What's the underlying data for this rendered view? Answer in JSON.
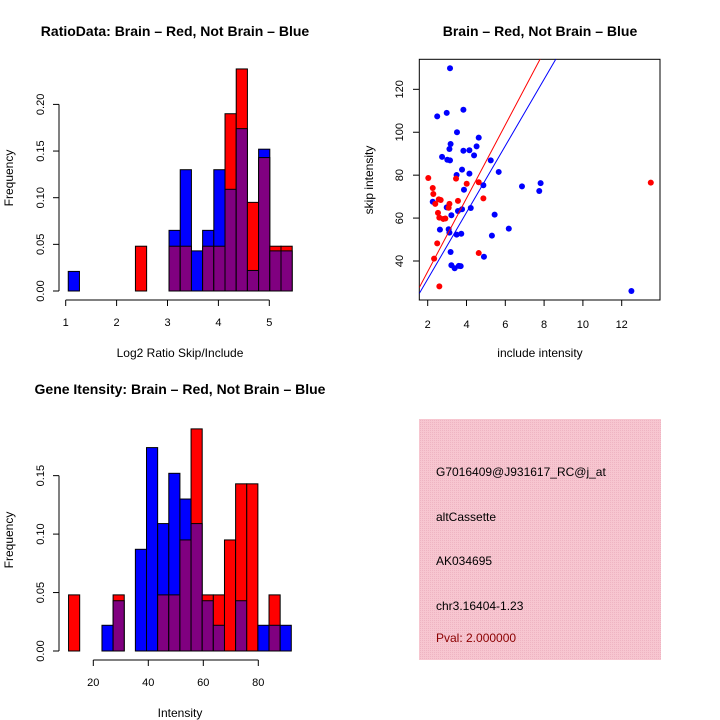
{
  "colors": {
    "brain": "#ff0000",
    "not_brain": "#0000ff",
    "overlap": "#800080",
    "panel_bg": "#f4c2cc",
    "pval": "#8b0000"
  },
  "chart_data": [
    {
      "id": "ratio_hist",
      "type": "bar",
      "title": "RatioData: Brain – Red, Not Brain – Blue",
      "xlabel": "Log2 Ratio Skip/Include",
      "ylabel": "Frequency",
      "break_start": 1.05,
      "bin_width": 0.22,
      "xticks": [
        1,
        2,
        3,
        4,
        5
      ],
      "yticks": [
        "0.00",
        "0.05",
        "0.10",
        "0.15",
        "0.20"
      ],
      "series": [
        {
          "name": "Brain",
          "color": "red",
          "values": [
            0,
            0,
            0,
            0,
            0,
            0,
            0.048,
            0,
            0,
            0.048,
            0.048,
            0,
            0.048,
            0.048,
            0.19,
            0.238,
            0.095,
            0.143,
            0.048,
            0.048
          ]
        },
        {
          "name": "Not Brain",
          "color": "blue",
          "values": [
            0.021,
            0,
            0,
            0,
            0,
            0,
            0,
            0,
            0,
            0.065,
            0.13,
            0.043,
            0.065,
            0.13,
            0.109,
            0.174,
            0.022,
            0.152,
            0.043,
            0.043
          ]
        }
      ]
    },
    {
      "id": "scatter",
      "type": "scatter",
      "title": "Brain – Red, Not Brain – Blue",
      "xlabel": "include intensity",
      "ylabel": "skip intensity",
      "xlim": [
        1.57,
        13.97
      ],
      "ylim": [
        21.8,
        134
      ],
      "xticks": [
        2,
        4,
        6,
        8,
        10,
        12
      ],
      "yticks": [
        40,
        60,
        80,
        100,
        120
      ],
      "series": [
        {
          "name": "Not Brain",
          "color": "blue",
          "points": [
            [
              3.15,
              129.8
            ],
            [
              2.49,
              107.4
            ],
            [
              2.98,
              109
            ],
            [
              3.84,
              110.5
            ],
            [
              3.51,
              100
            ],
            [
              4.63,
              97.5
            ],
            [
              3.18,
              94.5
            ],
            [
              3.12,
              92.2
            ],
            [
              3.84,
              91.4
            ],
            [
              4.15,
              91.6
            ],
            [
              4.52,
              93.4
            ],
            [
              4.39,
              89.2
            ],
            [
              2.74,
              88.5
            ],
            [
              3.01,
              87.2
            ],
            [
              3.15,
              86.9
            ],
            [
              5.25,
              86.9
            ],
            [
              3.77,
              82.6
            ],
            [
              5.66,
              81.5
            ],
            [
              3.49,
              80.1
            ],
            [
              4.15,
              80.7
            ],
            [
              4.87,
              75.3
            ],
            [
              3.87,
              73.2
            ],
            [
              6.86,
              74.8
            ],
            [
              7.82,
              76.3
            ],
            [
              7.75,
              72.6
            ],
            [
              2.26,
              67.6
            ],
            [
              2.98,
              65
            ],
            [
              3.22,
              61.3
            ],
            [
              3.77,
              64.1
            ],
            [
              3.56,
              63.3
            ],
            [
              4.22,
              64.7
            ],
            [
              5.45,
              61.6
            ],
            [
              2.63,
              54.6
            ],
            [
              3.08,
              54.8
            ],
            [
              3.12,
              53.2
            ],
            [
              3.49,
              52.3
            ],
            [
              3.73,
              52.7
            ],
            [
              5.31,
              51.8
            ],
            [
              6.18,
              55.1
            ],
            [
              3.18,
              44.2
            ],
            [
              4.9,
              42
            ],
            [
              3.22,
              38
            ],
            [
              3.39,
              36.6
            ],
            [
              3.6,
              37.7
            ],
            [
              3.7,
              37.6
            ],
            [
              12.5,
              26
            ]
          ],
          "fit": {
            "intercept": 0.53,
            "slope": 15.52
          }
        },
        {
          "name": "Brain",
          "color": "red",
          "points": [
            [
              2.03,
              78.7
            ],
            [
              2.26,
              74
            ],
            [
              2.29,
              71.2
            ],
            [
              2.39,
              66.6
            ],
            [
              2.57,
              68.7
            ],
            [
              2.67,
              68.4
            ],
            [
              2.53,
              62.4
            ],
            [
              2.6,
              60.2
            ],
            [
              2.8,
              59.6
            ],
            [
              2.91,
              59.8
            ],
            [
              3.12,
              66.6
            ],
            [
              3.08,
              64.8
            ],
            [
              3.46,
              78.4
            ],
            [
              3.56,
              68
            ],
            [
              4.01,
              76
            ],
            [
              4.63,
              76.7
            ],
            [
              4.87,
              69.2
            ],
            [
              2.49,
              48.2
            ],
            [
              2.33,
              41.1
            ],
            [
              4.63,
              43.7
            ],
            [
              2.6,
              28.2
            ],
            [
              13.5,
              76.5
            ]
          ],
          "fit": {
            "intercept": 0.87,
            "slope": 17.09
          }
        }
      ]
    },
    {
      "id": "gene_hist",
      "type": "bar",
      "title": "Gene Itensity: Brain – Red, Not Brain – Blue",
      "xlabel": "Intensity",
      "ylabel": "Frequency",
      "break_start": 11,
      "bin_width": 4.05,
      "xticks": [
        20,
        40,
        60,
        80
      ],
      "yticks": [
        "0.00",
        "0.05",
        "0.10",
        "0.15"
      ],
      "series": [
        {
          "name": "Brain",
          "color": "red",
          "values": [
            0.048,
            0,
            0,
            0,
            0.048,
            0,
            0,
            0,
            0.048,
            0.048,
            0.095,
            0.19,
            0.048,
            0.048,
            0.095,
            0.143,
            0.143,
            0,
            0.048,
            0
          ]
        },
        {
          "name": "Not Brain",
          "color": "blue",
          "values": [
            0,
            0,
            0,
            0.022,
            0.043,
            0,
            0.087,
            0.174,
            0.109,
            0.152,
            0.13,
            0.109,
            0.043,
            0.022,
            0,
            0.043,
            0,
            0.022,
            0.022,
            0.022
          ]
        }
      ]
    }
  ],
  "info_panel": {
    "probe_id": "G7016409@J931617_RC@j_at",
    "event_type": "altCassette",
    "accession": "AK034695",
    "location": "chr3.16404-1.23",
    "pval": "Pval: 2.000000"
  }
}
